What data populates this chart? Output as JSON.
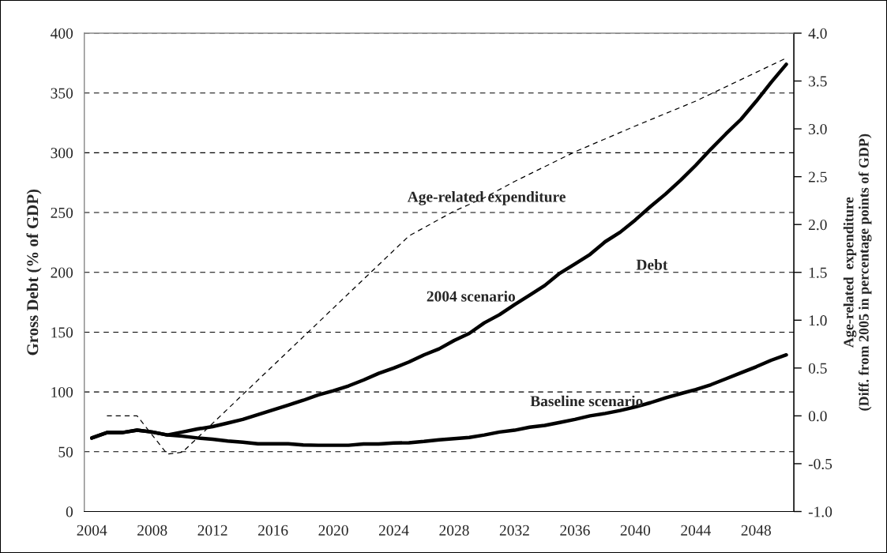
{
  "chart_data": {
    "type": "line",
    "ylabel": "Gross Debt (% of GDP)",
    "y2label": "Age-related  expenditure\n(Diff. from 2005 in percentage points of GDP)",
    "xlim": [
      2003.5,
      2050.5
    ],
    "xticks": [
      2004,
      2008,
      2012,
      2016,
      2020,
      2024,
      2028,
      2032,
      2036,
      2040,
      2044,
      2048
    ],
    "ylim": [
      0,
      400
    ],
    "yticks": [
      0,
      50,
      100,
      150,
      200,
      250,
      300,
      350,
      400
    ],
    "y2lim": [
      -1.0,
      4.0
    ],
    "y2ticks": [
      {
        "value": -1.0,
        "label": "-1.0"
      },
      {
        "value": -0.5,
        "label": "-0.5"
      },
      {
        "value": 0,
        "label": "0.0"
      },
      {
        "value": 0.5,
        "label": "0.5"
      },
      {
        "value": 1.0,
        "label": "1.0"
      },
      {
        "value": 1.5,
        "label": "1.5"
      },
      {
        "value": 2.0,
        "label": "2.0"
      },
      {
        "value": 2.5,
        "label": "2.5"
      },
      {
        "value": 3.0,
        "label": "3.0"
      },
      {
        "value": 3.5,
        "label": "3.5"
      },
      {
        "value": 4.0,
        "label": "4.0"
      }
    ],
    "grid": "y",
    "legend": false,
    "marker": "none",
    "annotations": [
      "Debt"
    ],
    "series": [
      {
        "name": "2004 scenario",
        "color": "#000000",
        "line_style": "solid",
        "x": [
          2004,
          2005,
          2006,
          2007,
          2008,
          2009,
          2010,
          2011,
          2012,
          2013,
          2014,
          2015,
          2016,
          2017,
          2018,
          2019,
          2020,
          2021,
          2022,
          2023,
          2024,
          2025,
          2026,
          2027,
          2028,
          2029,
          2030,
          2031,
          2032,
          2033,
          2034,
          2035,
          2036,
          2037,
          2038,
          2039,
          2040,
          2041,
          2042,
          2043,
          2044,
          2045,
          2046,
          2047,
          2048,
          2049,
          2050
        ],
        "values": [
          61.5,
          66,
          66,
          68,
          66.5,
          64,
          66.5,
          69,
          71,
          74,
          77,
          81,
          85,
          89,
          93,
          97.5,
          101,
          105,
          110,
          115.5,
          120,
          125,
          131,
          136,
          143,
          149,
          157.8,
          164.6,
          173,
          181,
          189,
          199.3,
          207,
          215,
          225.6,
          233.6,
          243.8,
          255,
          265.5,
          277,
          289.5,
          303,
          315.8,
          328,
          343,
          359,
          374
        ]
      },
      {
        "name": "Baseline scenario",
        "color": "#000000",
        "line_style": "solid",
        "x": [
          2004,
          2005,
          2006,
          2007,
          2008,
          2009,
          2010,
          2011,
          2012,
          2013,
          2014,
          2015,
          2016,
          2017,
          2018,
          2019,
          2020,
          2021,
          2022,
          2023,
          2024,
          2025,
          2026,
          2027,
          2028,
          2029,
          2030,
          2031,
          2032,
          2033,
          2034,
          2035,
          2036,
          2037,
          2038,
          2039,
          2040,
          2041,
          2042,
          2043,
          2044,
          2045,
          2046,
          2047,
          2048,
          2049,
          2050
        ],
        "values": [
          61.5,
          66,
          66,
          68,
          66.5,
          64,
          63,
          61.5,
          60.4,
          59,
          58,
          56.7,
          56.7,
          56.7,
          55.6,
          55.4,
          55.4,
          55.4,
          56.5,
          56.5,
          57.3,
          57.5,
          58.6,
          60,
          61,
          61.9,
          64,
          66.5,
          68,
          70.5,
          72,
          74.5,
          77,
          80,
          82,
          84.5,
          87.5,
          91,
          95,
          98.6,
          102,
          106,
          111,
          116,
          121,
          126.5,
          131
        ]
      },
      {
        "name": "Age-related expenditure",
        "color": "#000000",
        "line_style": "dashed",
        "axis": "y2",
        "x": [
          2005,
          2007,
          2009,
          2010,
          2025,
          2028,
          2030,
          2032,
          2036,
          2040,
          2044,
          2048,
          2050
        ],
        "values": [
          0.0,
          0.0,
          -0.4,
          -0.38,
          1.88,
          2.14,
          2.28,
          2.45,
          2.76,
          3.03,
          3.29,
          3.59,
          3.74
        ]
      }
    ]
  }
}
